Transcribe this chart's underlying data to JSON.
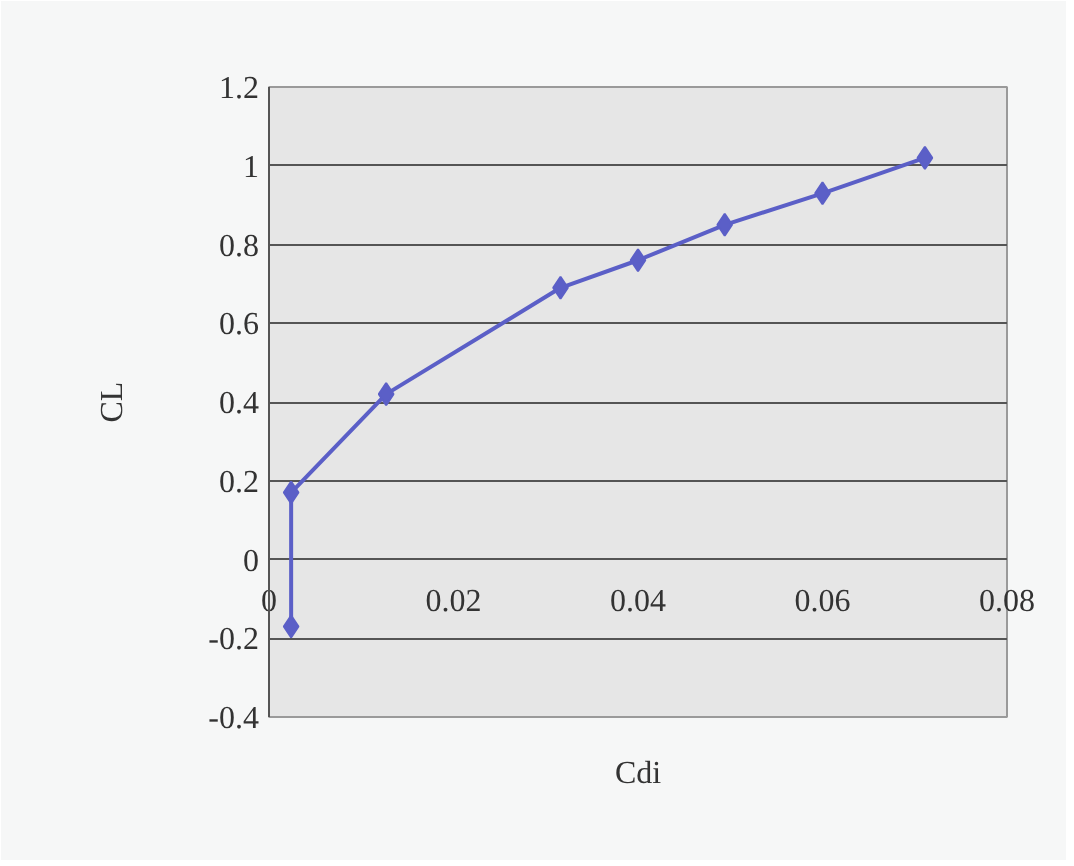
{
  "chart_data": {
    "type": "line",
    "xlabel": "Cdi",
    "ylabel": "CL",
    "x": [
      0.0024,
      0.0024,
      0.0127,
      0.0316,
      0.04,
      0.0494,
      0.06,
      0.0711
    ],
    "series": [
      {
        "color": "#5b5fc7",
        "values": [
          -0.17,
          0.17,
          0.42,
          0.69,
          0.76,
          0.85,
          0.93,
          1.02
        ]
      }
    ],
    "xlim": [
      0,
      0.08
    ],
    "ylim": [
      -0.4,
      1.2
    ],
    "xticks": [
      0,
      0.02,
      0.04,
      0.06,
      0.08
    ],
    "yticks": [
      -0.4,
      -0.2,
      0,
      0.2,
      0.4,
      0.6,
      0.8,
      1,
      1.2
    ],
    "grid": "y",
    "marker": "diamond",
    "line_style": "solid"
  }
}
